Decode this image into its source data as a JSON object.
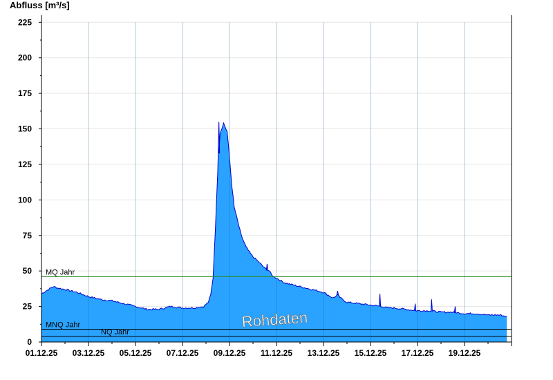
{
  "chart_data": {
    "type": "area",
    "ylabel": "Abfluss [m³/s]",
    "ylim": [
      0,
      230
    ],
    "yticks": [
      0,
      25,
      50,
      75,
      100,
      125,
      150,
      175,
      200,
      225
    ],
    "xlim": [
      "01.12.25",
      "21.12.25"
    ],
    "xticks": [
      "01.12.25",
      "03.12.25",
      "05.12.25",
      "07.12.25",
      "09.12.25",
      "11.12.25",
      "13.12.25",
      "15.12.25",
      "17.12.25",
      "19.12.25"
    ],
    "grid": true,
    "series": [
      {
        "name": "",
        "color": "#29a3ff",
        "line_color": "#0000cc",
        "x_days": [
          0.0,
          0.2,
          0.5,
          0.7,
          1.0,
          1.5,
          2.0,
          2.5,
          3.0,
          3.5,
          4.0,
          4.5,
          5.0,
          5.5,
          6.0,
          6.5,
          6.9,
          7.1,
          7.2,
          7.3,
          7.4,
          7.5,
          7.6,
          7.75,
          7.9,
          8.0,
          8.1,
          8.2,
          8.35,
          8.5,
          8.7,
          8.9,
          9.0,
          9.2,
          9.5,
          9.7,
          9.8,
          10.0,
          10.3,
          10.5,
          11.0,
          11.5,
          12.0,
          12.4,
          12.6,
          12.8,
          13.0,
          13.5,
          14.0,
          14.5,
          14.7,
          15.0,
          15.5,
          16.0,
          16.5,
          17.0,
          17.5,
          18.0,
          18.5,
          19.0,
          19.5,
          19.8
        ],
        "values": [
          34,
          36,
          39,
          38,
          37,
          35,
          32,
          30,
          29,
          27,
          25,
          23,
          23,
          25,
          24,
          24,
          25,
          28,
          33,
          45,
          80,
          120,
          147,
          154,
          148,
          130,
          110,
          95,
          85,
          75,
          67,
          62,
          60,
          57,
          52,
          50,
          47,
          45,
          42,
          41,
          39,
          37,
          35,
          31,
          33,
          30,
          28,
          27,
          26,
          25,
          24,
          24,
          23,
          22,
          22,
          21,
          21,
          20,
          20,
          19,
          19,
          18
        ]
      }
    ],
    "spikes": [
      {
        "x_day": 7.55,
        "value": 155
      },
      {
        "x_day": 9.6,
        "value": 55
      },
      {
        "x_day": 12.6,
        "value": 36
      },
      {
        "x_day": 14.4,
        "value": 34
      },
      {
        "x_day": 15.9,
        "value": 27
      },
      {
        "x_day": 16.6,
        "value": 30
      },
      {
        "x_day": 17.6,
        "value": 25
      }
    ],
    "reference_lines": [
      {
        "label": "MQ Jahr",
        "value": 46,
        "color": "#2e8b2e"
      },
      {
        "label": "MNQ Jahr",
        "value": 9,
        "color": "#000000"
      },
      {
        "label": "NQ Jahr",
        "value": 4,
        "color": "#000000"
      }
    ],
    "watermark": "Rohdaten"
  }
}
